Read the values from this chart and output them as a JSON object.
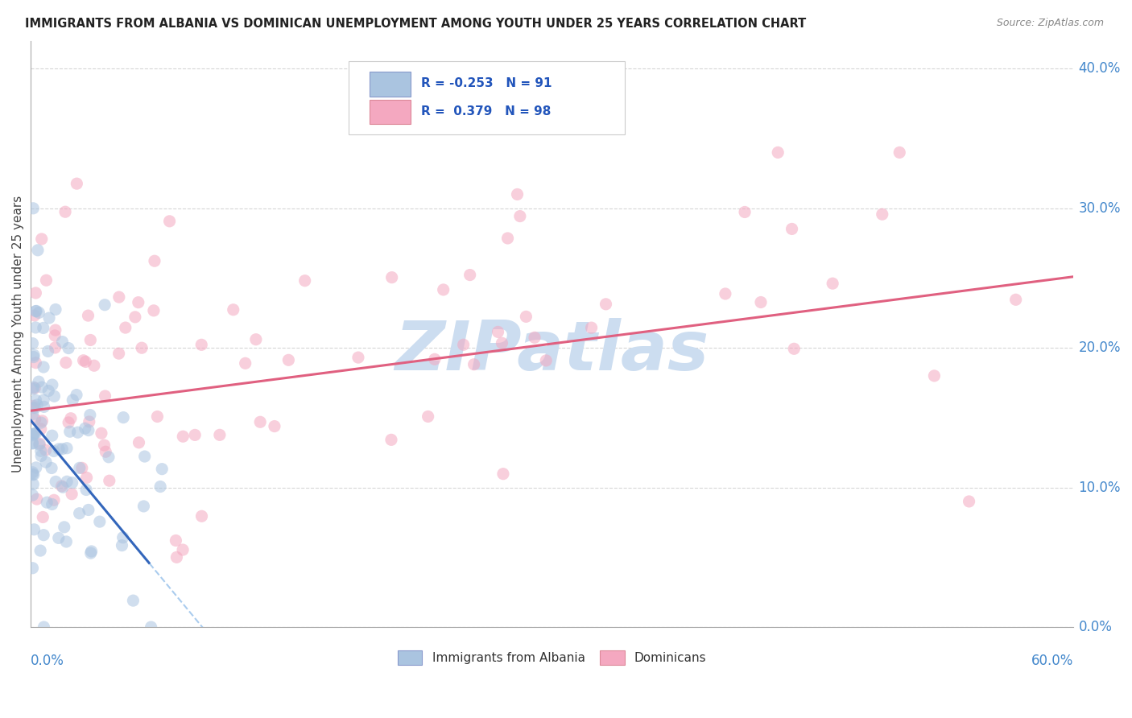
{
  "title": "IMMIGRANTS FROM ALBANIA VS DOMINICAN UNEMPLOYMENT AMONG YOUTH UNDER 25 YEARS CORRELATION CHART",
  "source": "Source: ZipAtlas.com",
  "legend_albania": "Immigrants from Albania",
  "legend_dominican": "Dominicans",
  "R_albania": -0.253,
  "N_albania": 91,
  "R_dominican": 0.379,
  "N_dominican": 98,
  "color_albania": "#aac4e0",
  "color_dominican": "#f4a8c0",
  "trendline_albania_color": "#3366bb",
  "trendline_dominican_color": "#e06080",
  "trendline_dashed_color": "#aaccee",
  "watermark_color": "#ccddf0",
  "background_color": "#ffffff",
  "grid_color": "#cccccc",
  "ylabel": "Unemployment Among Youth under 25 years",
  "ytick_labels": [
    "0.0%",
    "10.0%",
    "20.0%",
    "30.0%",
    "40.0%"
  ],
  "ytick_vals": [
    0.0,
    0.1,
    0.2,
    0.3,
    0.4
  ],
  "xlim": [
    0,
    0.6
  ],
  "ylim": [
    0,
    0.42
  ],
  "scatter_size": 120,
  "scatter_alpha": 0.55
}
